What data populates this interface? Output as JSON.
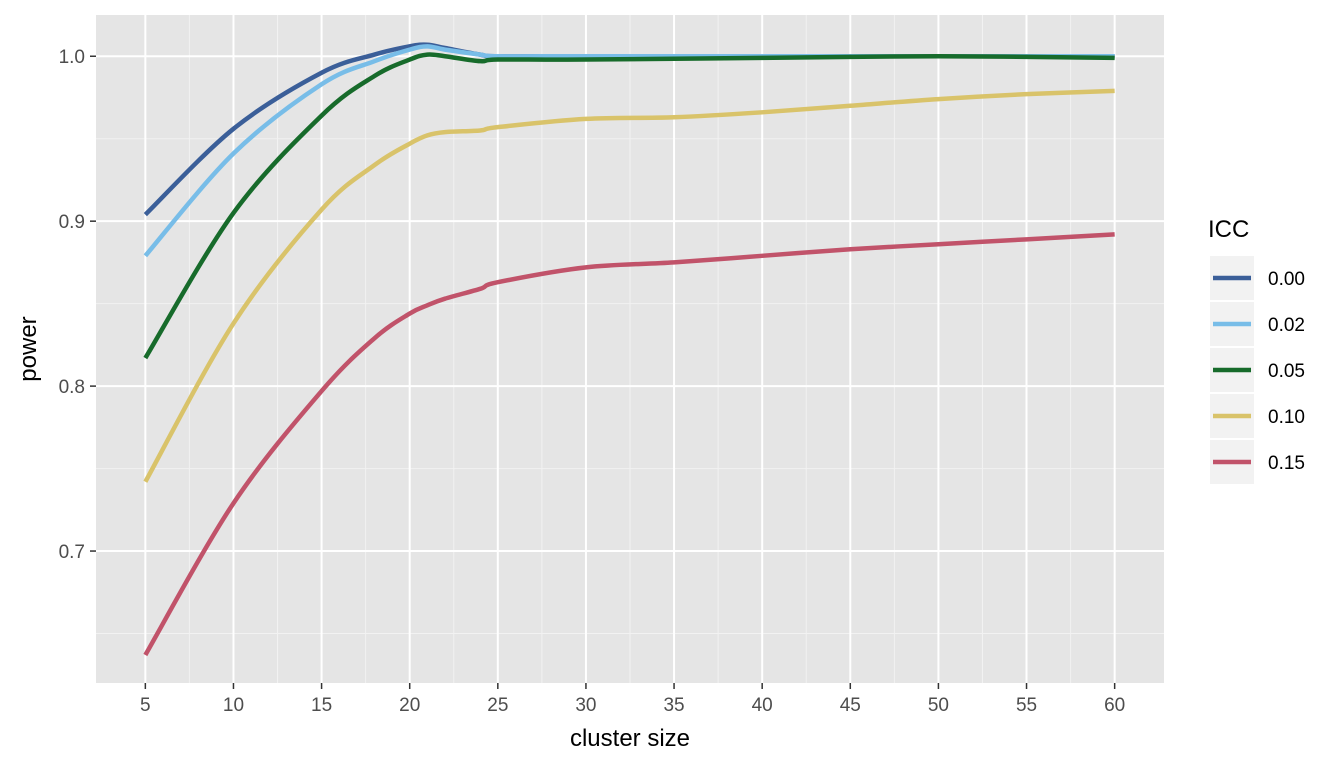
{
  "chart_data": {
    "type": "line",
    "xlabel": "cluster size",
    "ylabel": "power",
    "xlim": [
      2.2,
      62.8
    ],
    "ylim": [
      0.62,
      1.025
    ],
    "x_ticks": [
      5,
      10,
      15,
      20,
      25,
      30,
      35,
      40,
      45,
      50,
      55,
      60
    ],
    "y_ticks": [
      0.7,
      0.8,
      0.9,
      1.0
    ],
    "y_tick_labels": [
      "0.7",
      "0.8",
      "0.9",
      "1.0"
    ],
    "grid": true,
    "panel_background": "#e5e5e5",
    "legend": {
      "title": "ICC",
      "position": "right"
    },
    "series": [
      {
        "name": "0.00",
        "color": "#3b5f99",
        "x": [
          5,
          10,
          15,
          18,
          20,
          21,
          22,
          24,
          25,
          30,
          40,
          50,
          60
        ],
        "y": [
          0.904,
          0.956,
          0.99,
          1.001,
          1.006,
          1.007,
          1.005,
          1.001,
          1.0,
          1.0,
          1.0,
          1.0,
          1.0
        ]
      },
      {
        "name": "0.02",
        "color": "#78bde8",
        "x": [
          5,
          10,
          15,
          18,
          20,
          21,
          22,
          24,
          25,
          30,
          40,
          50,
          60
        ],
        "y": [
          0.879,
          0.941,
          0.983,
          0.997,
          1.004,
          1.006,
          1.004,
          1.001,
          1.0,
          1.0,
          1.0,
          1.0,
          1.0
        ]
      },
      {
        "name": "0.05",
        "color": "#176b2b",
        "x": [
          5,
          10,
          15,
          18,
          20,
          21,
          22,
          24,
          25,
          30,
          40,
          50,
          60
        ],
        "y": [
          0.817,
          0.905,
          0.964,
          0.988,
          0.998,
          1.001,
          1.0,
          0.997,
          0.998,
          0.998,
          0.999,
          1.0,
          0.999
        ]
      },
      {
        "name": "0.10",
        "color": "#d9c36a",
        "x": [
          5,
          10,
          15,
          18,
          20,
          21,
          22,
          24,
          25,
          30,
          35,
          40,
          45,
          50,
          55,
          60
        ],
        "y": [
          0.742,
          0.838,
          0.907,
          0.934,
          0.947,
          0.952,
          0.954,
          0.955,
          0.957,
          0.962,
          0.963,
          0.966,
          0.97,
          0.974,
          0.977,
          0.979
        ]
      },
      {
        "name": "0.15",
        "color": "#c1536a",
        "x": [
          5,
          10,
          15,
          18,
          20,
          21,
          22,
          24,
          25,
          30,
          35,
          40,
          45,
          50,
          55,
          60
        ],
        "y": [
          0.637,
          0.729,
          0.797,
          0.829,
          0.844,
          0.849,
          0.853,
          0.859,
          0.863,
          0.872,
          0.875,
          0.879,
          0.883,
          0.886,
          0.889,
          0.892
        ]
      }
    ]
  }
}
